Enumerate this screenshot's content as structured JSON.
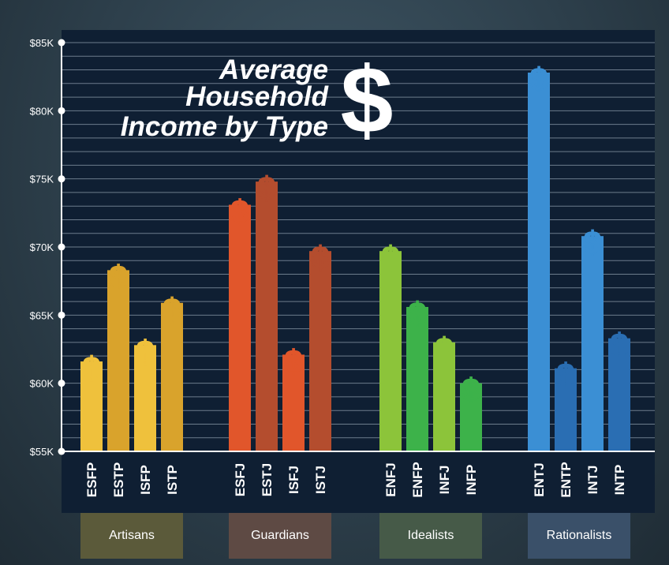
{
  "colors": {
    "background": "#2d3f4b",
    "plot_background": "#0f1f33",
    "grid": "#6d7c8c",
    "axis": "#ffffff",
    "text": "#ffffff"
  },
  "chart_data": {
    "type": "bar",
    "title_lines": [
      "Average",
      "Household",
      "Income by Type"
    ],
    "title_icon": "$",
    "bar_icon": "dollar-sign-icon",
    "ylim": [
      55000,
      85000
    ],
    "y_ticks": [
      {
        "value": 55000,
        "label": "$55K"
      },
      {
        "value": 60000,
        "label": "$60K"
      },
      {
        "value": 65000,
        "label": "$65K"
      },
      {
        "value": 70000,
        "label": "$70K"
      },
      {
        "value": 75000,
        "label": "$75K"
      },
      {
        "value": 80000,
        "label": "$80K"
      },
      {
        "value": 85000,
        "label": "$85K"
      }
    ],
    "grid": true,
    "groups": [
      {
        "name": "Artisans",
        "box_color": "#5b5a3a",
        "bars": [
          {
            "label": "ESFP",
            "value": 61600,
            "color": "#efc13c"
          },
          {
            "label": "ESTP",
            "value": 68300,
            "color": "#d9a32c"
          },
          {
            "label": "ISFP",
            "value": 62800,
            "color": "#efc13c"
          },
          {
            "label": "ISTP",
            "value": 65900,
            "color": "#d9a32c"
          }
        ]
      },
      {
        "name": "Guardians",
        "box_color": "#5e4a44",
        "bars": [
          {
            "label": "ESFJ",
            "value": 73100,
            "color": "#e1562b"
          },
          {
            "label": "ESTJ",
            "value": 74800,
            "color": "#b44d2e"
          },
          {
            "label": "ISFJ",
            "value": 62100,
            "color": "#e1562b"
          },
          {
            "label": "ISTJ",
            "value": 69700,
            "color": "#b44d2e"
          }
        ]
      },
      {
        "name": "Idealists",
        "box_color": "#465a48",
        "bars": [
          {
            "label": "ENFJ",
            "value": 69700,
            "color": "#8cc43a"
          },
          {
            "label": "ENFP",
            "value": 65600,
            "color": "#3db24a"
          },
          {
            "label": "INFJ",
            "value": 63000,
            "color": "#8cc43a"
          },
          {
            "label": "INFP",
            "value": 60000,
            "color": "#3db24a"
          }
        ]
      },
      {
        "name": "Rationalists",
        "box_color": "#3a5069",
        "bars": [
          {
            "label": "ENTJ",
            "value": 82800,
            "color": "#3b8fd4"
          },
          {
            "label": "ENTP",
            "value": 61100,
            "color": "#2a6eb3"
          },
          {
            "label": "INTJ",
            "value": 70800,
            "color": "#3b8fd4"
          },
          {
            "label": "INTP",
            "value": 63300,
            "color": "#2a6eb3"
          }
        ]
      }
    ]
  }
}
